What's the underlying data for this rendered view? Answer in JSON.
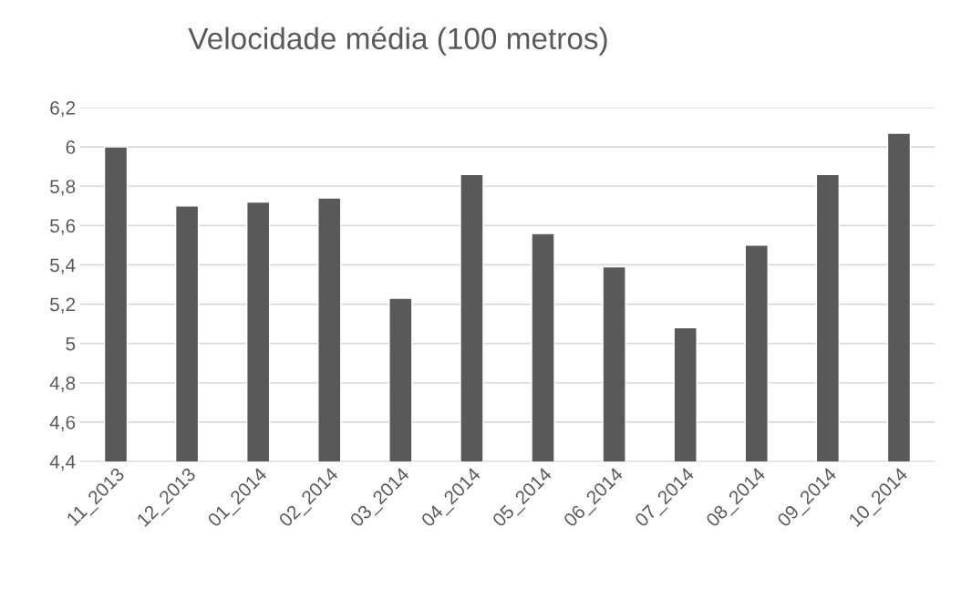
{
  "chart_data": {
    "type": "bar",
    "title": "Velocidade média (100 metros)",
    "categories": [
      "11_2013",
      "12_2013",
      "01_2014",
      "02_2014",
      "03_2014",
      "04_2014",
      "05_2014",
      "06_2014",
      "07_2014",
      "08_2014",
      "09_2014",
      "10_2014"
    ],
    "values": [
      6.0,
      5.7,
      5.72,
      5.74,
      5.23,
      5.86,
      5.56,
      5.39,
      5.08,
      5.5,
      5.86,
      6.07
    ],
    "color": "#595959",
    "ylim": [
      4.4,
      6.2
    ],
    "yticks": [
      {
        "value": 4.4,
        "label": "4,4"
      },
      {
        "value": 4.6,
        "label": "4,6"
      },
      {
        "value": 4.8,
        "label": "4,8"
      },
      {
        "value": 5.0,
        "label": "5"
      },
      {
        "value": 5.2,
        "label": "5,2"
      },
      {
        "value": 5.4,
        "label": "5,4"
      },
      {
        "value": 5.6,
        "label": "5,6"
      },
      {
        "value": 5.8,
        "label": "5,8"
      },
      {
        "value": 6.0,
        "label": "6"
      },
      {
        "value": 6.2,
        "label": "6,2"
      }
    ],
    "grid": "y",
    "legend": false
  }
}
